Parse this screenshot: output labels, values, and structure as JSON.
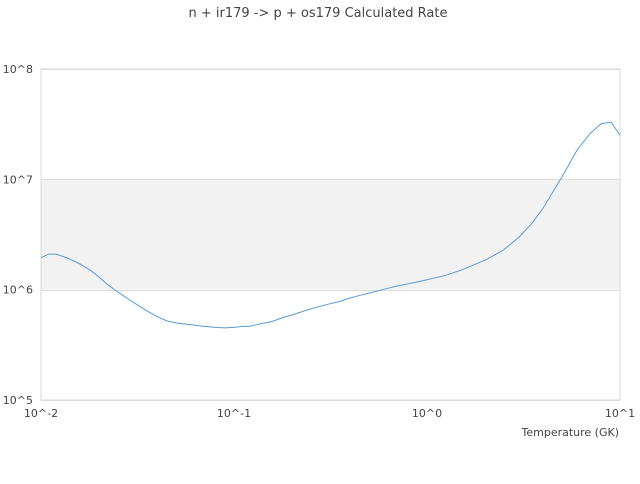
{
  "chart_data": {
    "type": "line",
    "title": "n + ir179 -> p + os179 Calculated Rate",
    "xlabel": "Temperature (GK)",
    "ylabel": "",
    "x_scale": "log",
    "y_scale": "log",
    "xlim": [
      0.01,
      10
    ],
    "ylim": [
      100000,
      100000000
    ],
    "x_ticks": [
      {
        "value": 0.01,
        "label": "10^-2"
      },
      {
        "value": 0.1,
        "label": "10^-1"
      },
      {
        "value": 1,
        "label": "10^0"
      },
      {
        "value": 10,
        "label": "10^1"
      }
    ],
    "y_ticks": [
      {
        "value": 100000,
        "label": "10^5"
      },
      {
        "value": 1000000,
        "label": "10^6"
      },
      {
        "value": 10000000,
        "label": "10^7"
      },
      {
        "value": 100000000,
        "label": "10^8"
      }
    ],
    "bands": [
      {
        "from": 1000000,
        "to": 10000000,
        "color": "#f2f2f2"
      }
    ],
    "grid": true,
    "legend": "none",
    "series": [
      {
        "color": "#5b9bd5",
        "x": [
          0.01,
          0.011,
          0.012,
          0.013,
          0.014,
          0.015,
          0.016,
          0.018,
          0.02,
          0.022,
          0.025,
          0.03,
          0.035,
          0.04,
          0.045,
          0.05,
          0.06,
          0.07,
          0.08,
          0.09,
          0.1,
          0.11,
          0.12,
          0.13,
          0.14,
          0.15,
          0.16,
          0.18,
          0.2,
          0.25,
          0.3,
          0.35,
          0.4,
          0.45,
          0.5,
          0.6,
          0.7,
          0.8,
          0.9,
          1.0,
          1.25,
          1.5,
          1.75,
          2.0,
          2.5,
          3.0,
          3.5,
          4.0,
          5.0,
          6.0,
          7.0,
          8.0,
          9.0,
          10.0
        ],
        "y": [
          1950000,
          2100000,
          2100000,
          2000000,
          1900000,
          1800000,
          1700000,
          1500000,
          1300000,
          1120000,
          950000,
          770000,
          650000,
          570000,
          520000,
          500000,
          480000,
          465000,
          455000,
          450000,
          455000,
          465000,
          465000,
          480000,
          495000,
          505000,
          520000,
          560000,
          590000,
          670000,
          730000,
          780000,
          840000,
          890000,
          930000,
          1010000,
          1080000,
          1130000,
          1180000,
          1230000,
          1350000,
          1500000,
          1680000,
          1850000,
          2300000,
          3000000,
          4000000,
          5500000,
          10500000,
          18500000,
          26000000,
          32000000,
          33000000,
          25000000
        ]
      }
    ]
  }
}
